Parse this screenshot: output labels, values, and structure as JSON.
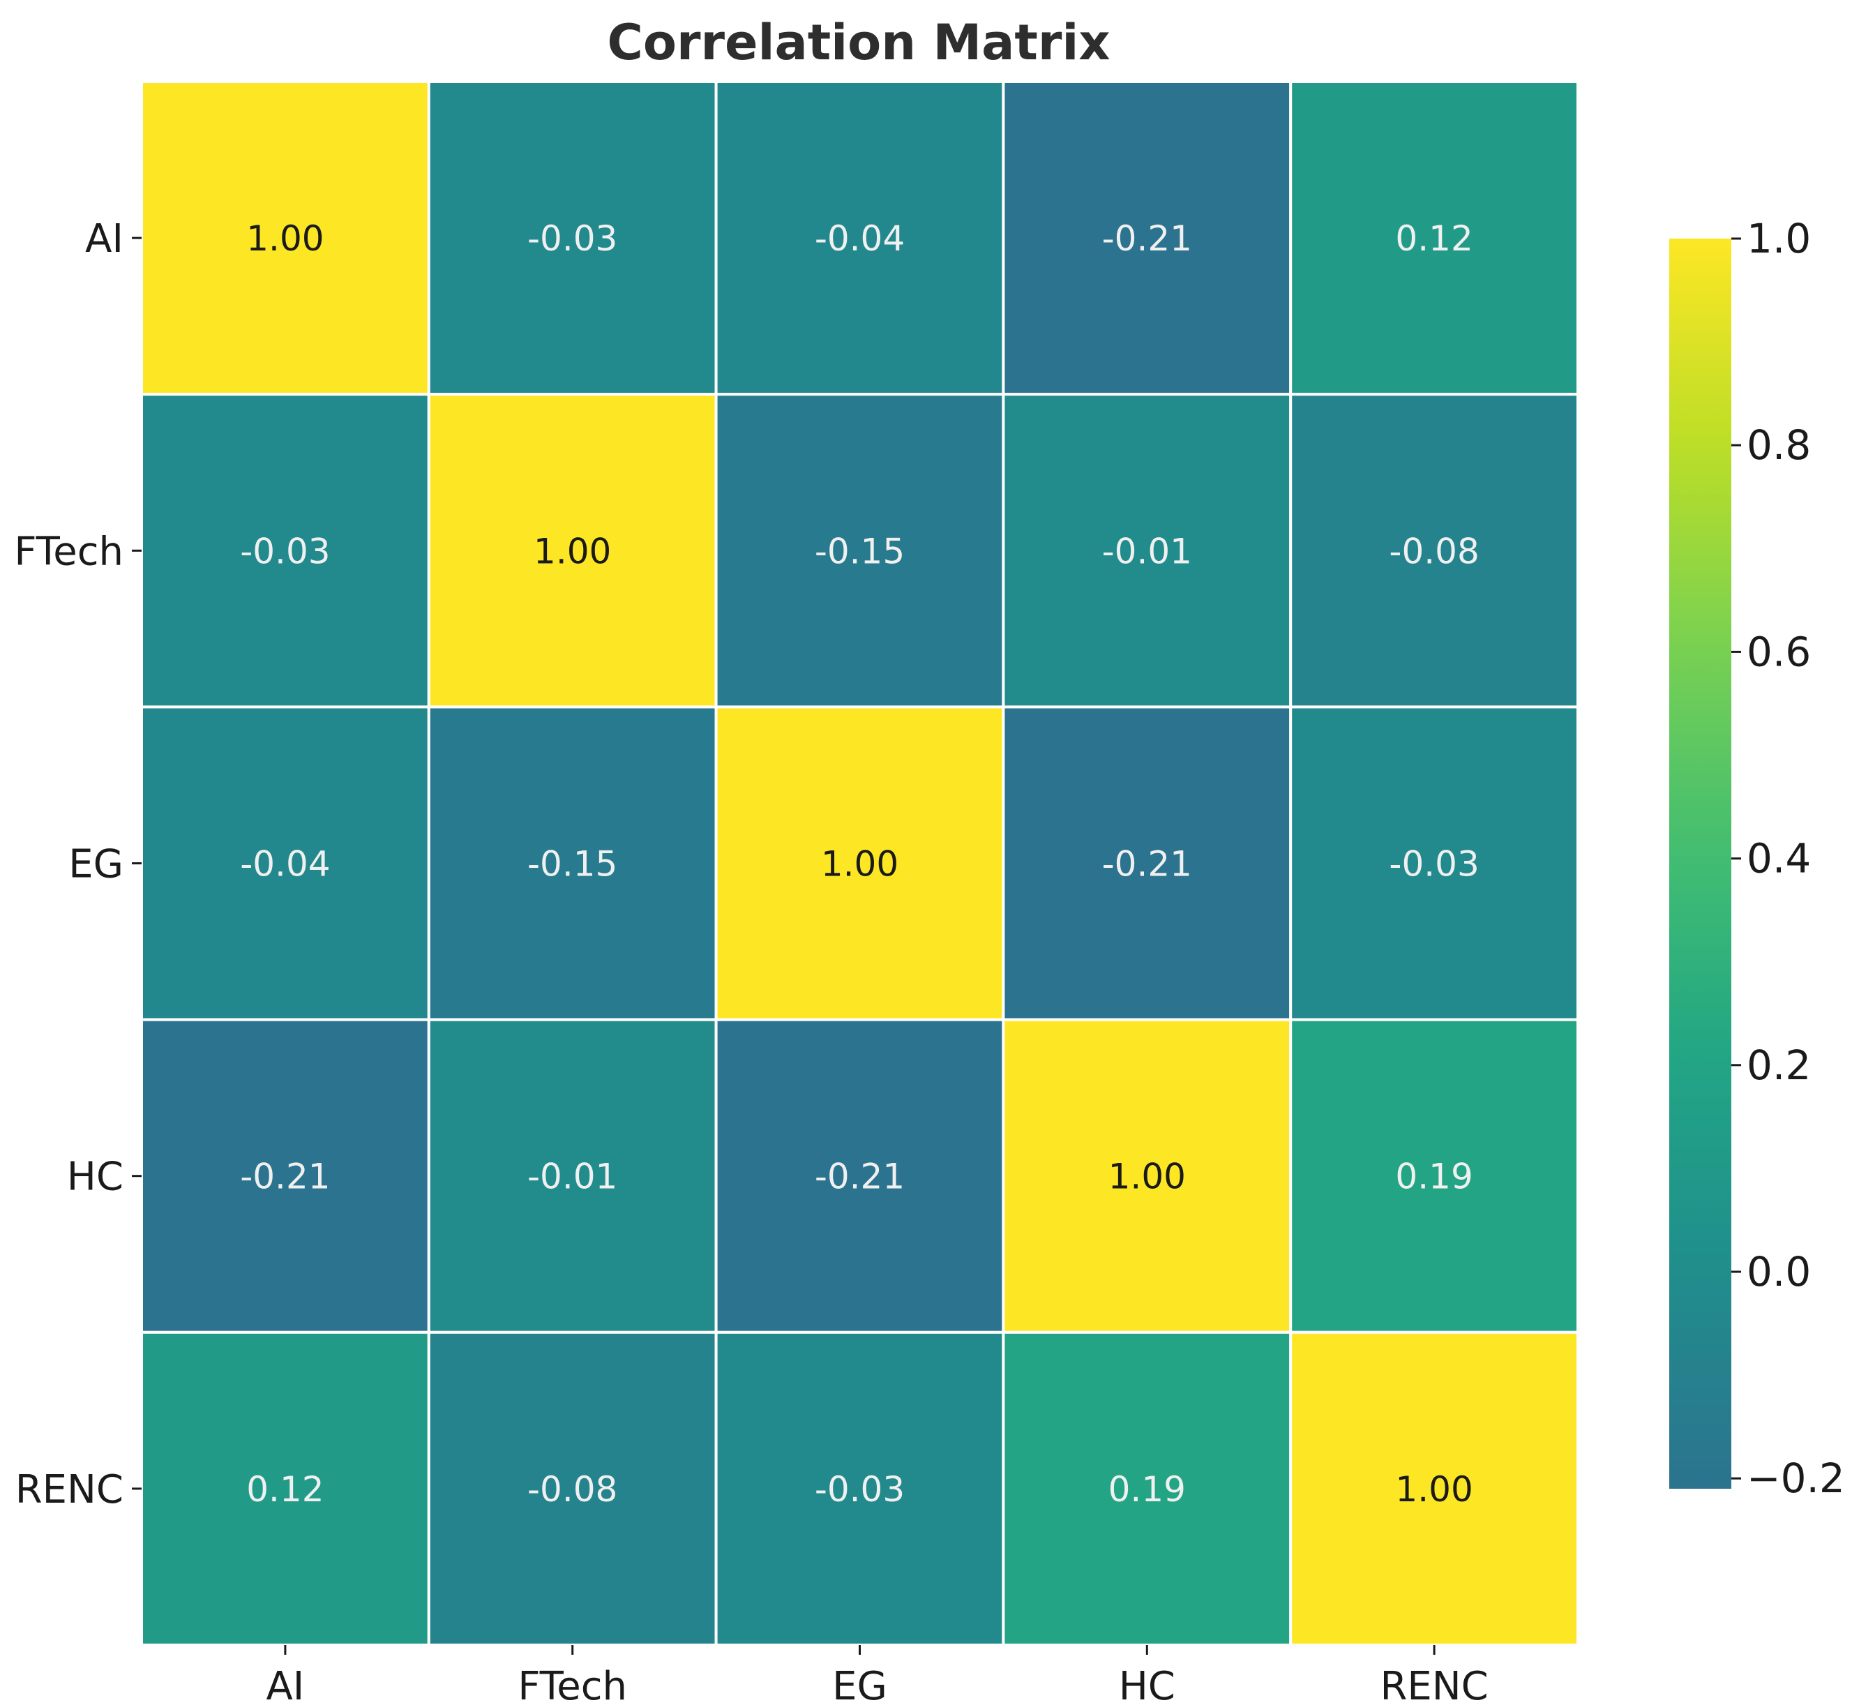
{
  "chart_data": {
    "type": "heatmap",
    "title": "Correlation Matrix",
    "row_labels": [
      "AI",
      "FTech",
      "EG",
      "HC",
      "RENC"
    ],
    "col_labels": [
      "AI",
      "FTech",
      "EG",
      "HC",
      "RENC"
    ],
    "values": [
      [
        1.0,
        -0.03,
        -0.04,
        -0.21,
        0.12
      ],
      [
        -0.03,
        1.0,
        -0.15,
        -0.01,
        -0.08
      ],
      [
        -0.04,
        -0.15,
        1.0,
        -0.21,
        -0.03
      ],
      [
        -0.21,
        -0.01,
        -0.21,
        1.0,
        0.19
      ],
      [
        0.12,
        -0.08,
        -0.03,
        0.19,
        1.0
      ]
    ],
    "annotations": [
      [
        "1.00",
        "-0.03",
        "-0.04",
        "-0.21",
        "0.12"
      ],
      [
        "-0.03",
        "1.00",
        "-0.15",
        "-0.01",
        "-0.08"
      ],
      [
        "-0.04",
        "-0.15",
        "1.00",
        "-0.21",
        "-0.03"
      ],
      [
        "-0.21",
        "-0.01",
        "-0.21",
        "1.00",
        "0.19"
      ],
      [
        "0.12",
        "-0.08",
        "-0.03",
        "0.19",
        "1.00"
      ]
    ],
    "colormap": "viridis",
    "colorbar": {
      "range": [
        -0.21,
        1.0
      ],
      "ticks": [
        -0.2,
        0.0,
        0.2,
        0.4,
        0.6,
        0.8,
        1.0
      ],
      "tick_labels": [
        "−0.2",
        "0.0",
        "0.2",
        "0.4",
        "0.6",
        "0.8",
        "1.0"
      ]
    },
    "cell_border_color": "#ffffff",
    "light_text_color": "#f0f0f0",
    "dark_text_color": "#1a1a1a"
  }
}
